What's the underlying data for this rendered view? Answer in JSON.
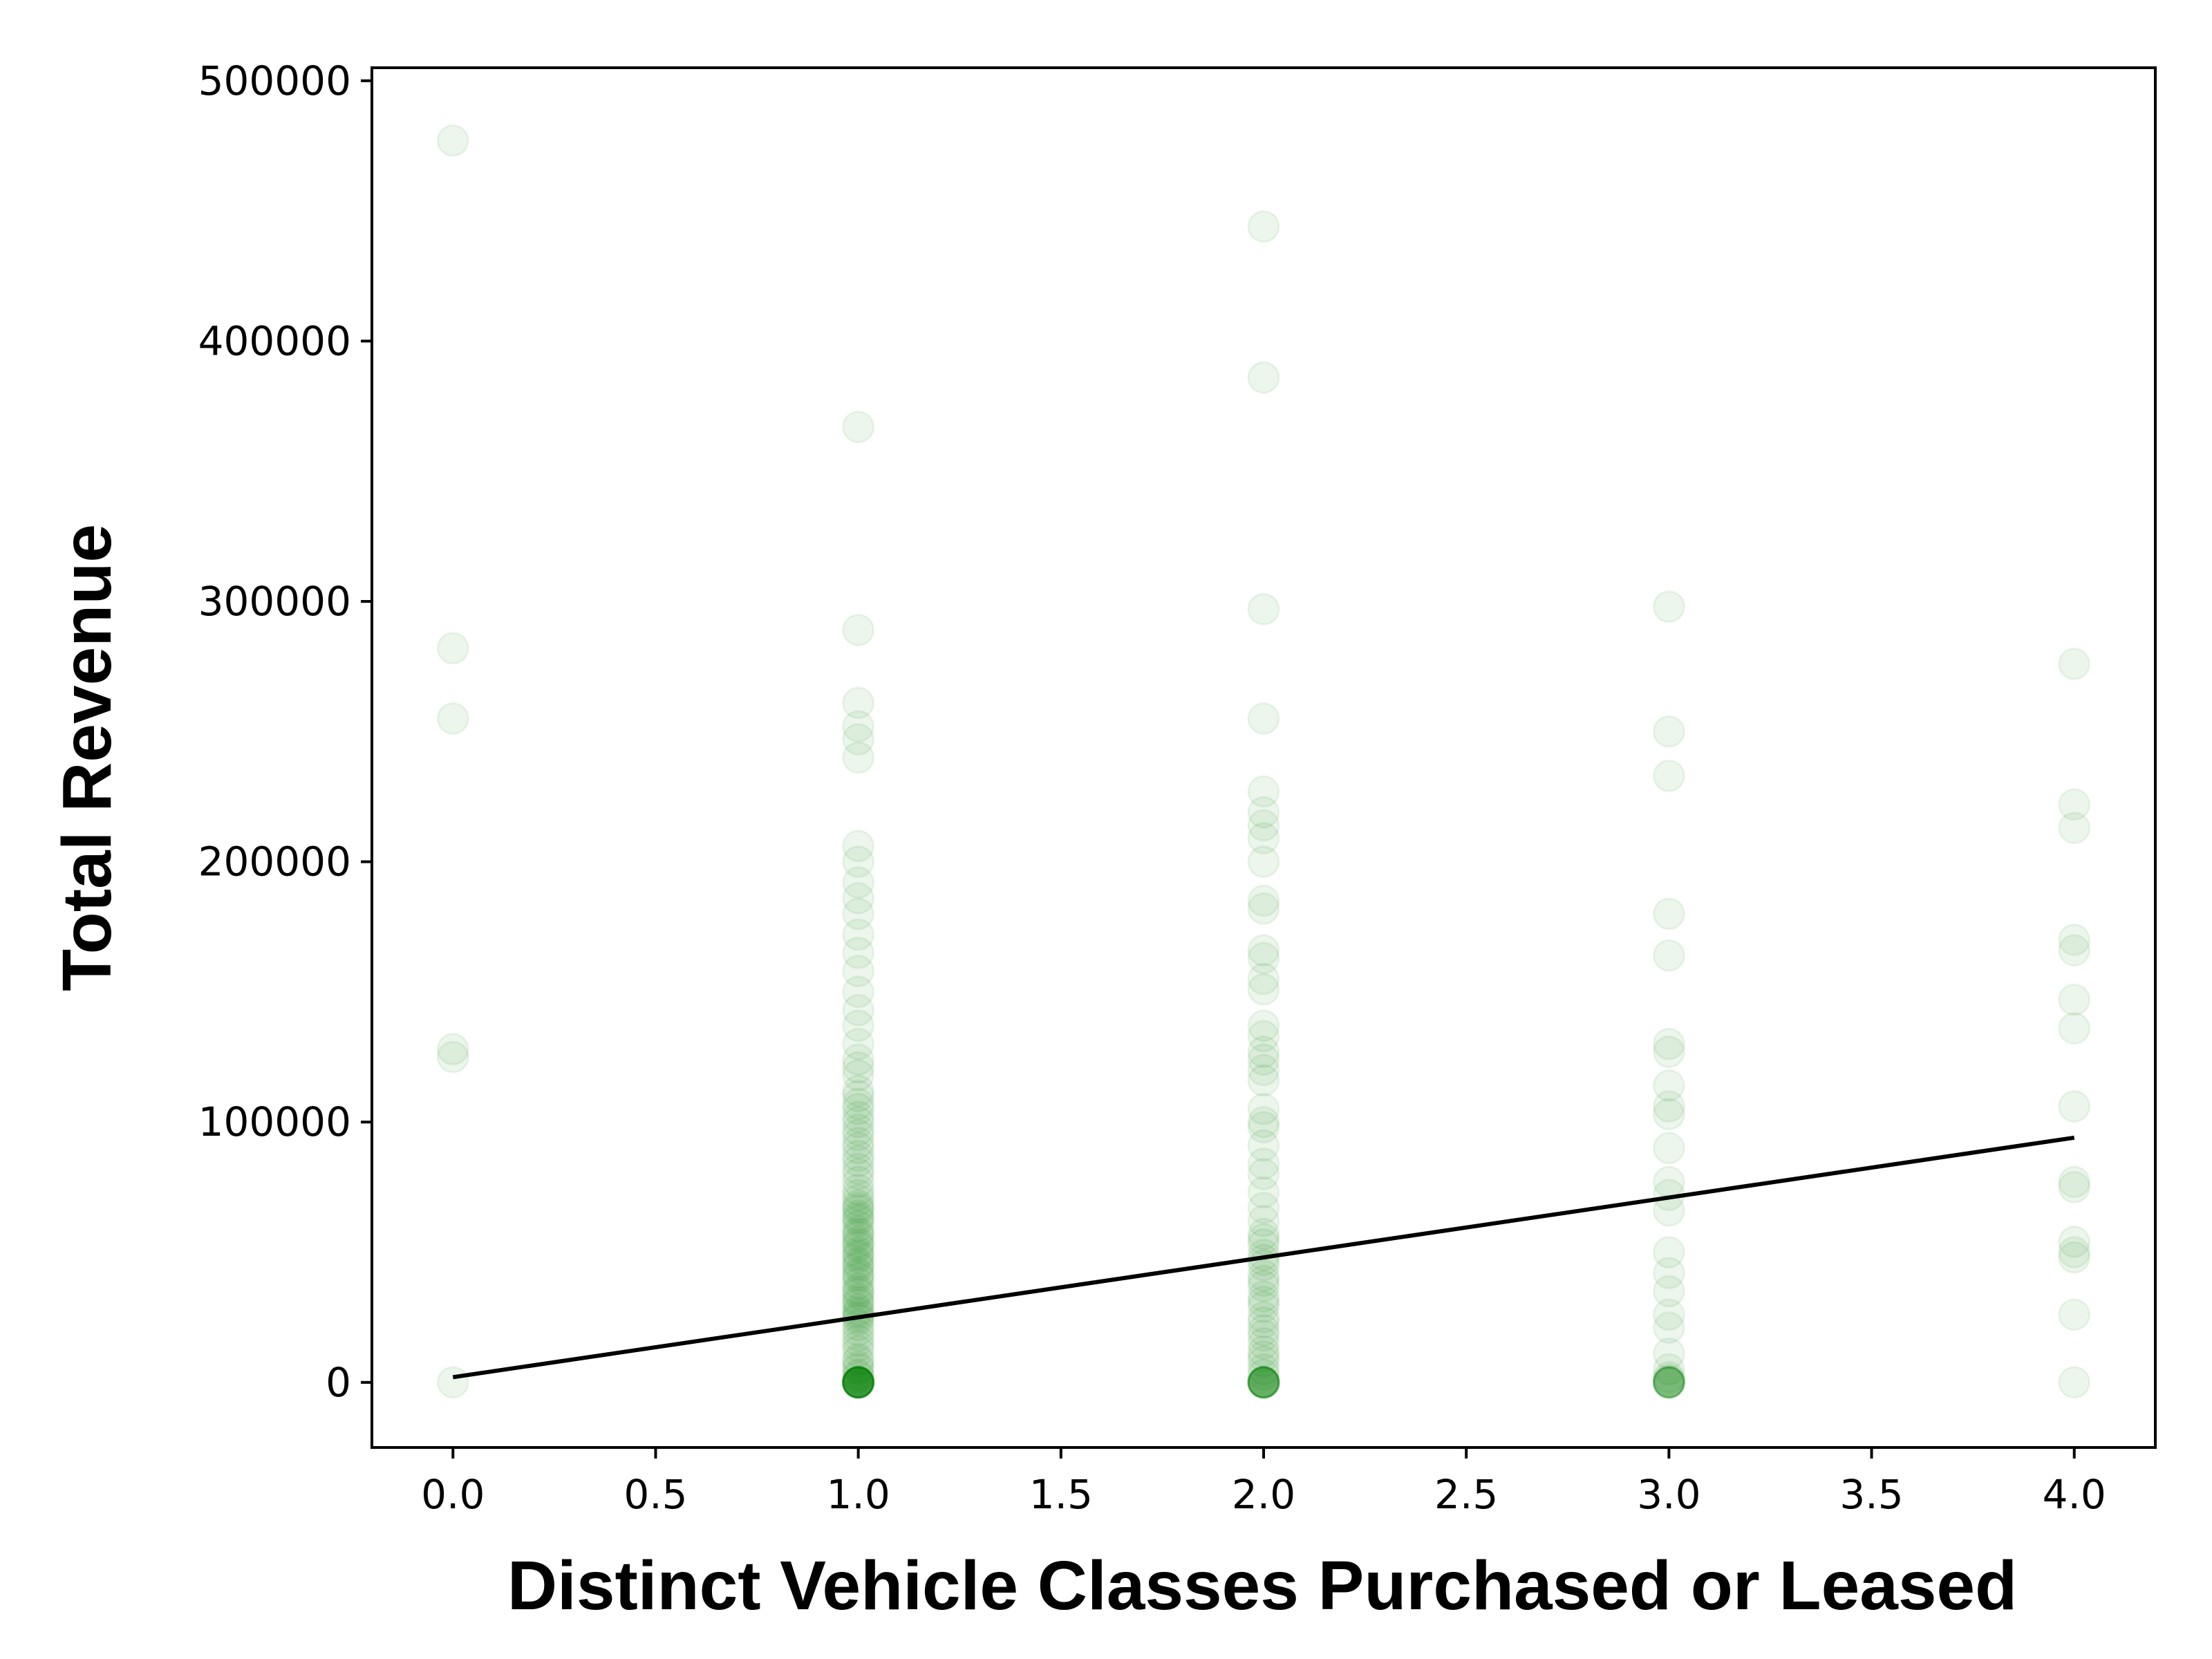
{
  "chart_data": {
    "type": "scatter",
    "title": "",
    "xlabel": "Distinct Vehicle Classes Purchased or Leased",
    "ylabel": "Total Revenue",
    "xlim": [
      -0.2,
      4.2
    ],
    "ylim": [
      -25000,
      505000
    ],
    "x_ticks": [
      0.0,
      0.5,
      1.0,
      1.5,
      2.0,
      2.5,
      3.0,
      3.5,
      4.0
    ],
    "x_tick_labels": [
      "0.0",
      "0.5",
      "1.0",
      "1.5",
      "2.0",
      "2.5",
      "3.0",
      "3.5",
      "4.0"
    ],
    "y_ticks": [
      0,
      100000,
      200000,
      300000,
      400000,
      500000
    ],
    "y_tick_labels": [
      "0",
      "100000",
      "200000",
      "300000",
      "400000",
      "500000"
    ],
    "grid": false,
    "point_color": "#008000",
    "point_alpha": 0.07,
    "line_color": "#000000",
    "series": [
      {
        "kind": "scatter",
        "points": [
          [
            0,
            477000
          ],
          [
            0,
            282000
          ],
          [
            0,
            255000
          ],
          [
            0,
            128000
          ],
          [
            0,
            125000
          ],
          [
            0,
            0
          ],
          [
            1,
            367000
          ],
          [
            1,
            289000
          ],
          [
            1,
            261000
          ],
          [
            1,
            252000
          ],
          [
            1,
            247000
          ],
          [
            1,
            240000
          ],
          [
            1,
            206000
          ],
          [
            1,
            200000
          ],
          [
            1,
            192000
          ],
          [
            1,
            186000
          ],
          [
            1,
            180000
          ],
          [
            1,
            172000
          ],
          [
            1,
            165000
          ],
          [
            1,
            158000
          ],
          [
            1,
            150000
          ],
          [
            1,
            143000
          ],
          [
            1,
            137000
          ],
          [
            1,
            130000
          ],
          [
            1,
            124000
          ],
          [
            1,
            118000
          ],
          [
            1,
            112000
          ],
          [
            1,
            107000
          ],
          [
            1,
            102000
          ],
          [
            1,
            97000
          ],
          [
            1,
            92000
          ],
          [
            1,
            87000
          ],
          [
            1,
            82000
          ],
          [
            1,
            77000
          ],
          [
            1,
            72000
          ],
          [
            1,
            68000
          ],
          [
            1,
            64000
          ],
          [
            1,
            60000
          ],
          [
            1,
            56000
          ],
          [
            1,
            52000
          ],
          [
            1,
            48000
          ],
          [
            1,
            44000
          ],
          [
            1,
            40000
          ],
          [
            1,
            36000
          ],
          [
            1,
            32000
          ],
          [
            1,
            28000
          ],
          [
            1,
            24000
          ],
          [
            1,
            20000
          ],
          [
            1,
            16000
          ],
          [
            1,
            12000
          ],
          [
            1,
            8000
          ],
          [
            1,
            5000
          ],
          [
            1,
            2000
          ],
          [
            1,
            0
          ],
          [
            1,
            0
          ],
          [
            1,
            0
          ],
          [
            1,
            0
          ],
          [
            1,
            0
          ],
          [
            1,
            0
          ],
          [
            1,
            0
          ],
          [
            1,
            0
          ],
          [
            1,
            0
          ],
          [
            1,
            0
          ],
          [
            1,
            0
          ],
          [
            1,
            0
          ],
          [
            1,
            0
          ],
          [
            1,
            0
          ],
          [
            1,
            0
          ],
          [
            1,
            0
          ],
          [
            1,
            0
          ],
          [
            1,
            0
          ],
          [
            1,
            0
          ],
          [
            1,
            3000
          ],
          [
            1,
            6000
          ],
          [
            1,
            9000
          ],
          [
            1,
            14000
          ],
          [
            1,
            18000
          ],
          [
            1,
            22000
          ],
          [
            1,
            26000
          ],
          [
            1,
            30000
          ],
          [
            1,
            34000
          ],
          [
            1,
            38000
          ],
          [
            1,
            42000
          ],
          [
            1,
            46000
          ],
          [
            1,
            50000
          ],
          [
            1,
            54000
          ],
          [
            1,
            58000
          ],
          [
            1,
            62000
          ],
          [
            1,
            66000
          ],
          [
            1,
            70000
          ],
          [
            1,
            25000
          ],
          [
            1,
            27000
          ],
          [
            1,
            31000
          ],
          [
            1,
            35000
          ],
          [
            1,
            41000
          ],
          [
            1,
            45000
          ],
          [
            1,
            49000
          ],
          [
            1,
            53000
          ],
          [
            1,
            57000
          ],
          [
            1,
            63000
          ],
          [
            1,
            67000
          ],
          [
            1,
            74000
          ],
          [
            1,
            80000
          ],
          [
            1,
            85000
          ],
          [
            1,
            90000
          ],
          [
            1,
            95000
          ],
          [
            1,
            100000
          ],
          [
            1,
            105000
          ],
          [
            1,
            110000
          ],
          [
            1,
            121000
          ],
          [
            2,
            444000
          ],
          [
            2,
            386000
          ],
          [
            2,
            297000
          ],
          [
            2,
            255000
          ],
          [
            2,
            227000
          ],
          [
            2,
            219000
          ],
          [
            2,
            214000
          ],
          [
            2,
            209000
          ],
          [
            2,
            200000
          ],
          [
            2,
            185000
          ],
          [
            2,
            182000
          ],
          [
            2,
            166000
          ],
          [
            2,
            163000
          ],
          [
            2,
            155000
          ],
          [
            2,
            151000
          ],
          [
            2,
            137000
          ],
          [
            2,
            133000
          ],
          [
            2,
            127000
          ],
          [
            2,
            124000
          ],
          [
            2,
            120000
          ],
          [
            2,
            116000
          ],
          [
            2,
            105000
          ],
          [
            2,
            100000
          ],
          [
            2,
            98000
          ],
          [
            2,
            91000
          ],
          [
            2,
            84000
          ],
          [
            2,
            80000
          ],
          [
            2,
            73000
          ],
          [
            2,
            67000
          ],
          [
            2,
            62000
          ],
          [
            2,
            57000
          ],
          [
            2,
            53000
          ],
          [
            2,
            49000
          ],
          [
            2,
            45000
          ],
          [
            2,
            41000
          ],
          [
            2,
            37000
          ],
          [
            2,
            33000
          ],
          [
            2,
            29000
          ],
          [
            2,
            25000
          ],
          [
            2,
            20000
          ],
          [
            2,
            15000
          ],
          [
            2,
            10000
          ],
          [
            2,
            5000
          ],
          [
            2,
            0
          ],
          [
            2,
            0
          ],
          [
            2,
            0
          ],
          [
            2,
            0
          ],
          [
            2,
            0
          ],
          [
            2,
            0
          ],
          [
            2,
            0
          ],
          [
            2,
            0
          ],
          [
            2,
            0
          ],
          [
            2,
            0
          ],
          [
            2,
            0
          ],
          [
            2,
            0
          ],
          [
            2,
            3000
          ],
          [
            2,
            8000
          ],
          [
            2,
            12000
          ],
          [
            2,
            18000
          ],
          [
            2,
            23000
          ],
          [
            2,
            31000
          ],
          [
            2,
            39000
          ],
          [
            2,
            47000
          ],
          [
            2,
            55000
          ],
          [
            3,
            298000
          ],
          [
            3,
            250000
          ],
          [
            3,
            233000
          ],
          [
            3,
            180000
          ],
          [
            3,
            164000
          ],
          [
            3,
            130000
          ],
          [
            3,
            127000
          ],
          [
            3,
            114000
          ],
          [
            3,
            106000
          ],
          [
            3,
            103000
          ],
          [
            3,
            90000
          ],
          [
            3,
            77000
          ],
          [
            3,
            72000
          ],
          [
            3,
            66000
          ],
          [
            3,
            50000
          ],
          [
            3,
            42000
          ],
          [
            3,
            35000
          ],
          [
            3,
            26000
          ],
          [
            3,
            21000
          ],
          [
            3,
            11000
          ],
          [
            3,
            5000
          ],
          [
            3,
            2000
          ],
          [
            3,
            1000
          ],
          [
            3,
            0
          ],
          [
            3,
            0
          ],
          [
            3,
            0
          ],
          [
            3,
            0
          ],
          [
            3,
            0
          ],
          [
            3,
            0
          ],
          [
            3,
            0
          ],
          [
            3,
            0
          ],
          [
            4,
            276000
          ],
          [
            4,
            222000
          ],
          [
            4,
            213000
          ],
          [
            4,
            170000
          ],
          [
            4,
            166000
          ],
          [
            4,
            147000
          ],
          [
            4,
            136000
          ],
          [
            4,
            106000
          ],
          [
            4,
            77000
          ],
          [
            4,
            75000
          ],
          [
            4,
            54000
          ],
          [
            4,
            50000
          ],
          [
            4,
            48000
          ],
          [
            4,
            26000
          ],
          [
            4,
            0
          ]
        ]
      },
      {
        "kind": "line",
        "points": [
          [
            0,
            2000
          ],
          [
            4,
            94000
          ]
        ]
      }
    ]
  }
}
